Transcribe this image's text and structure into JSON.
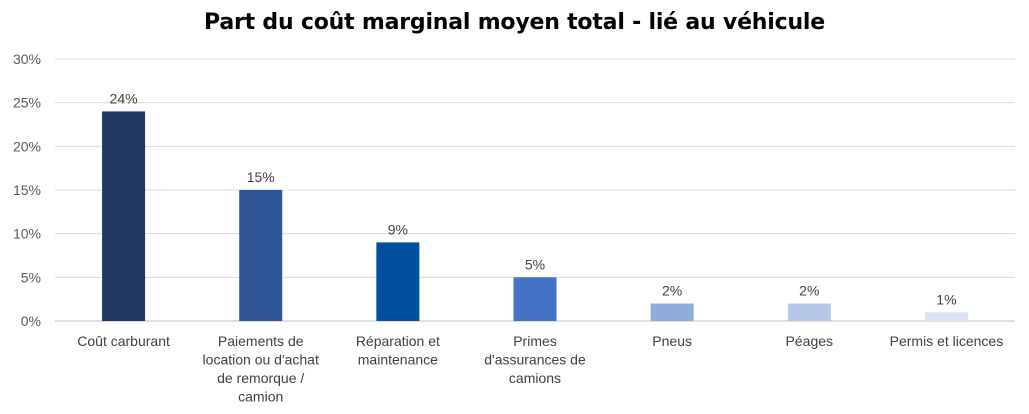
{
  "chart_data": {
    "type": "bar",
    "title": "Part du coût marginal moyen total - lié au véhicule",
    "xlabel": "",
    "ylabel": "",
    "ylim": [
      0,
      0.3
    ],
    "yticks": [
      0,
      0.05,
      0.1,
      0.15,
      0.2,
      0.25,
      0.3
    ],
    "ytick_labels": [
      "0%",
      "5%",
      "10%",
      "15%",
      "20%",
      "25%",
      "30%"
    ],
    "grid": true,
    "categories": [
      "Coût carburant",
      "Paiements de location ou d'achat de remorque / camion",
      "Réparation et maintenance",
      "Primes d'assurances de camions",
      "Pneus",
      "Péages",
      "Permis et licences"
    ],
    "category_lines": [
      [
        "Coût carburant"
      ],
      [
        "Paiements de",
        "location ou d'achat",
        "de remorque /",
        "camion"
      ],
      [
        "Réparation et",
        "maintenance"
      ],
      [
        "Primes",
        "d'assurances de",
        "camions"
      ],
      [
        "Pneus"
      ],
      [
        "Péages"
      ],
      [
        "Permis et licences"
      ]
    ],
    "values": [
      0.24,
      0.15,
      0.09,
      0.05,
      0.02,
      0.02,
      0.01
    ],
    "data_labels": [
      "24%",
      "15%",
      "9%",
      "5%",
      "2%",
      "2%",
      "1%"
    ],
    "colors": [
      "#203864",
      "#2F5597",
      "#0050A0",
      "#4472C4",
      "#8FAADC",
      "#B4C7E7",
      "#DAE3F3"
    ]
  }
}
